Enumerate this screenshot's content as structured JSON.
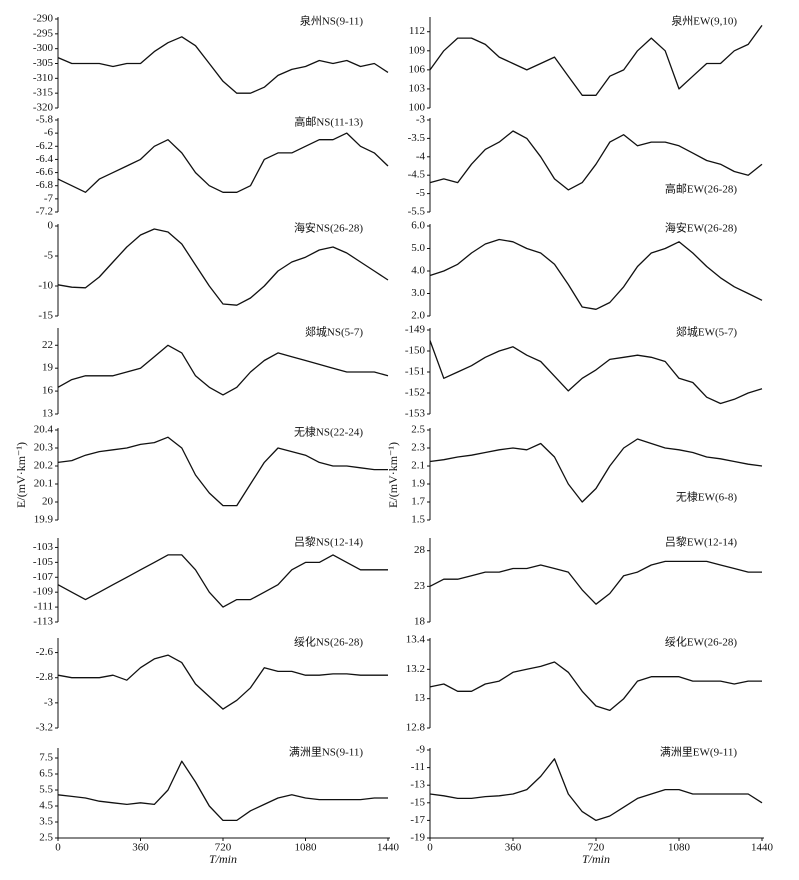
{
  "chart_data": [
    {
      "type": "line",
      "title": "泉州NS(9-11)",
      "x": [
        0,
        60,
        120,
        180,
        240,
        300,
        360,
        420,
        480,
        540,
        600,
        660,
        720,
        780,
        840,
        900,
        960,
        1020,
        1080,
        1140,
        1200,
        1260,
        1320,
        1380,
        1440
      ],
      "values": [
        -303,
        -305,
        -305,
        -305,
        -306,
        -305,
        -305,
        -301,
        -298,
        -296,
        -299,
        -305,
        -311,
        -315,
        -315,
        -313,
        -309,
        -307,
        -306,
        -304,
        -305,
        -304,
        -306,
        -305,
        -308
      ],
      "color": "#111111",
      "xlim": [
        0,
        1440
      ],
      "ylim": [
        -320,
        -290
      ],
      "yticks": [
        -290,
        -295,
        -300,
        -305,
        -310,
        -315,
        -320
      ]
    },
    {
      "type": "line",
      "title": "泉州EW(9,10)",
      "x": [
        0,
        60,
        120,
        180,
        240,
        300,
        360,
        420,
        480,
        540,
        600,
        660,
        720,
        780,
        840,
        900,
        960,
        1020,
        1080,
        1140,
        1200,
        1260,
        1320,
        1380,
        1440
      ],
      "values": [
        106,
        109,
        111,
        111,
        110,
        108,
        107,
        106,
        107,
        108,
        105,
        102,
        102,
        105,
        106,
        109,
        111,
        109,
        103,
        105,
        107,
        107,
        109,
        110,
        113
      ],
      "color": "#111111",
      "xlim": [
        0,
        1440
      ],
      "ylim": [
        100,
        114
      ],
      "yticks": [
        100,
        103,
        106,
        109,
        112
      ]
    },
    {
      "type": "line",
      "title": "高邮NS(11-13)",
      "x": [
        0,
        60,
        120,
        180,
        240,
        300,
        360,
        420,
        480,
        540,
        600,
        660,
        720,
        780,
        840,
        900,
        960,
        1020,
        1080,
        1140,
        1200,
        1260,
        1320,
        1380,
        1440
      ],
      "values": [
        -6.7,
        -6.8,
        -6.9,
        -6.7,
        -6.6,
        -6.5,
        -6.4,
        -6.2,
        -6.1,
        -6.3,
        -6.6,
        -6.8,
        -6.9,
        -6.9,
        -6.8,
        -6.4,
        -6.3,
        -6.3,
        -6.2,
        -6.1,
        -6.1,
        -6.0,
        -6.2,
        -6.3,
        -6.5
      ],
      "color": "#111111",
      "xlim": [
        0,
        1440
      ],
      "ylim": [
        -7.2,
        -5.8
      ],
      "yticks": [
        -5.8,
        -6,
        -6.2,
        -6.4,
        -6.6,
        -6.8,
        -7,
        -7.2
      ]
    },
    {
      "type": "line",
      "title": "高邮EW(26-28)",
      "title_corner": "bottom-right",
      "x": [
        0,
        60,
        120,
        180,
        240,
        300,
        360,
        420,
        480,
        540,
        600,
        660,
        720,
        780,
        840,
        900,
        960,
        1020,
        1080,
        1140,
        1200,
        1260,
        1320,
        1380,
        1440
      ],
      "values": [
        -4.7,
        -4.6,
        -4.7,
        -4.2,
        -3.8,
        -3.6,
        -3.3,
        -3.5,
        -4.0,
        -4.6,
        -4.9,
        -4.7,
        -4.2,
        -3.6,
        -3.4,
        -3.7,
        -3.6,
        -3.6,
        -3.7,
        -3.9,
        -4.1,
        -4.2,
        -4.4,
        -4.5,
        -4.2
      ],
      "color": "#111111",
      "xlim": [
        0,
        1440
      ],
      "ylim": [
        -5.5,
        -3
      ],
      "yticks": [
        -3,
        -3.5,
        -4,
        -4.5,
        -5,
        -5.5
      ]
    },
    {
      "type": "line",
      "title": "海安NS(26-28)",
      "x": [
        0,
        60,
        120,
        180,
        240,
        300,
        360,
        420,
        480,
        540,
        600,
        660,
        720,
        780,
        840,
        900,
        960,
        1020,
        1080,
        1140,
        1200,
        1260,
        1320,
        1380,
        1440
      ],
      "values": [
        -9.8,
        -10.2,
        -10.3,
        -8.5,
        -6,
        -3.5,
        -1.5,
        -0.5,
        -1,
        -3,
        -6.5,
        -10,
        -13,
        -13.2,
        -12,
        -10,
        -7.5,
        -6,
        -5.2,
        -4,
        -3.5,
        -4.5,
        -6,
        -7.5,
        -9
      ],
      "color": "#111111",
      "xlim": [
        0,
        1440
      ],
      "ylim": [
        -15,
        0
      ],
      "yticks": [
        0,
        -5,
        -10,
        -15
      ]
    },
    {
      "type": "line",
      "title": "海安EW(26-28)",
      "x": [
        0,
        60,
        120,
        180,
        240,
        300,
        360,
        420,
        480,
        540,
        600,
        660,
        720,
        780,
        840,
        900,
        960,
        1020,
        1080,
        1140,
        1200,
        1260,
        1320,
        1380,
        1440
      ],
      "values": [
        3.8,
        4.0,
        4.3,
        4.8,
        5.2,
        5.4,
        5.3,
        5.0,
        4.8,
        4.3,
        3.4,
        2.4,
        2.3,
        2.6,
        3.3,
        4.2,
        4.8,
        5.0,
        5.3,
        4.8,
        4.2,
        3.7,
        3.3,
        3.0,
        2.7
      ],
      "color": "#111111",
      "xlim": [
        0,
        1440
      ],
      "ylim": [
        2,
        6
      ],
      "yticks": [
        {
          "value": 6,
          "label": "6.0"
        },
        {
          "value": 5,
          "label": "5.0"
        },
        {
          "value": 4,
          "label": "4.0"
        },
        {
          "value": 3,
          "label": "3.0"
        },
        {
          "value": 2,
          "label": "2.0"
        }
      ]
    },
    {
      "type": "line",
      "title": "郯城NS(5-7)",
      "x": [
        0,
        60,
        120,
        180,
        240,
        300,
        360,
        420,
        480,
        540,
        600,
        660,
        720,
        780,
        840,
        900,
        960,
        1020,
        1080,
        1140,
        1200,
        1260,
        1320,
        1380,
        1440
      ],
      "values": [
        16.5,
        17.5,
        18,
        18,
        18,
        18.5,
        19,
        20.5,
        22,
        21,
        18,
        16.5,
        15.5,
        16.5,
        18.5,
        20,
        21,
        20.5,
        20,
        19.5,
        19,
        18.5,
        18.5,
        18.5,
        18
      ],
      "color": "#111111",
      "xlim": [
        0,
        1440
      ],
      "ylim": [
        13,
        24
      ],
      "yticks": [
        22,
        19,
        16,
        13
      ]
    },
    {
      "type": "line",
      "title": "郯城EW(5-7)",
      "x": [
        0,
        60,
        120,
        180,
        240,
        300,
        360,
        420,
        480,
        540,
        600,
        660,
        720,
        780,
        840,
        900,
        960,
        1020,
        1080,
        1140,
        1200,
        1260,
        1320,
        1380,
        1440
      ],
      "values": [
        -149.5,
        -151.3,
        -151,
        -150.7,
        -150.3,
        -150,
        -149.8,
        -150.2,
        -150.5,
        -151.2,
        -151.9,
        -151.3,
        -150.9,
        -150.4,
        -150.3,
        -150.2,
        -150.3,
        -150.5,
        -151.3,
        -151.5,
        -152.2,
        -152.5,
        -152.3,
        -152,
        -151.8
      ],
      "color": "#111111",
      "xlim": [
        0,
        1440
      ],
      "ylim": [
        -153,
        -149
      ],
      "yticks": [
        -149,
        -150,
        -151,
        -152,
        -153
      ]
    },
    {
      "type": "line",
      "title": "无棣NS(22-24)",
      "x": [
        0,
        60,
        120,
        180,
        240,
        300,
        360,
        420,
        480,
        540,
        600,
        660,
        720,
        780,
        840,
        900,
        960,
        1020,
        1080,
        1140,
        1200,
        1260,
        1320,
        1380,
        1440
      ],
      "values": [
        20.22,
        20.23,
        20.26,
        20.28,
        20.29,
        20.3,
        20.32,
        20.33,
        20.36,
        20.3,
        20.15,
        20.05,
        19.98,
        19.98,
        20.1,
        20.22,
        20.3,
        20.28,
        20.26,
        20.22,
        20.2,
        20.2,
        20.19,
        20.18,
        20.18
      ],
      "color": "#111111",
      "xlim": [
        0,
        1440
      ],
      "ylim": [
        19.9,
        20.4
      ],
      "yticks": [
        20.4,
        20.3,
        20.2,
        20.1,
        20,
        19.9
      ],
      "ylabel": "E/(mV·km⁻¹)"
    },
    {
      "type": "line",
      "title": "无棣EW(6-8)",
      "title_corner": "bottom-right",
      "x": [
        0,
        60,
        120,
        180,
        240,
        300,
        360,
        420,
        480,
        540,
        600,
        660,
        720,
        780,
        840,
        900,
        960,
        1020,
        1080,
        1140,
        1200,
        1260,
        1320,
        1380,
        1440
      ],
      "values": [
        2.15,
        2.17,
        2.2,
        2.22,
        2.25,
        2.28,
        2.3,
        2.28,
        2.35,
        2.2,
        1.9,
        1.7,
        1.85,
        2.1,
        2.3,
        2.4,
        2.35,
        2.3,
        2.28,
        2.25,
        2.2,
        2.18,
        2.15,
        2.12,
        2.1
      ],
      "color": "#111111",
      "xlim": [
        0,
        1440
      ],
      "ylim": [
        1.5,
        2.5
      ],
      "yticks": [
        2.5,
        2.3,
        2.1,
        1.9,
        1.7,
        1.5
      ],
      "ylabel": "E/(mV·km⁻¹)"
    },
    {
      "type": "line",
      "title": "吕黎NS(12-14)",
      "x": [
        0,
        60,
        120,
        180,
        240,
        300,
        360,
        420,
        480,
        540,
        600,
        660,
        720,
        780,
        840,
        900,
        960,
        1020,
        1080,
        1140,
        1200,
        1260,
        1320,
        1380,
        1440
      ],
      "values": [
        -108,
        -109,
        -110,
        -109,
        -108,
        -107,
        -106,
        -105,
        -104,
        -104,
        -106,
        -109,
        -111,
        -110,
        -110,
        -109,
        -108,
        -106,
        -105,
        -105,
        -104,
        -105,
        -106,
        -106,
        -106
      ],
      "color": "#111111",
      "xlim": [
        0,
        1440
      ],
      "ylim": [
        -113,
        -102
      ],
      "yticks": [
        -103,
        -105,
        -107,
        -109,
        -111,
        -113
      ]
    },
    {
      "type": "line",
      "title": "吕黎EW(12-14)",
      "x": [
        0,
        60,
        120,
        180,
        240,
        300,
        360,
        420,
        480,
        540,
        600,
        660,
        720,
        780,
        840,
        900,
        960,
        1020,
        1080,
        1140,
        1200,
        1260,
        1320,
        1380,
        1440
      ],
      "values": [
        23,
        24,
        24,
        24.5,
        25,
        25,
        25.5,
        25.5,
        26,
        25.5,
        25,
        22.5,
        20.5,
        22,
        24.5,
        25,
        26,
        26.5,
        26.5,
        26.5,
        26.5,
        26,
        25.5,
        25,
        25
      ],
      "color": "#111111",
      "xlim": [
        0,
        1440
      ],
      "ylim": [
        18,
        29.5
      ],
      "yticks": [
        28,
        23,
        18
      ]
    },
    {
      "type": "line",
      "title": "绥化NS(26-28)",
      "x": [
        0,
        60,
        120,
        180,
        240,
        300,
        360,
        420,
        480,
        540,
        600,
        660,
        720,
        780,
        840,
        900,
        960,
        1020,
        1080,
        1140,
        1200,
        1260,
        1320,
        1380,
        1440
      ],
      "values": [
        -2.78,
        -2.8,
        -2.8,
        -2.8,
        -2.78,
        -2.82,
        -2.72,
        -2.65,
        -2.62,
        -2.68,
        -2.85,
        -2.95,
        -3.05,
        -2.98,
        -2.88,
        -2.72,
        -2.75,
        -2.75,
        -2.78,
        -2.78,
        -2.77,
        -2.77,
        -2.78,
        -2.78,
        -2.78
      ],
      "color": "#111111",
      "xlim": [
        0,
        1440
      ],
      "ylim": [
        -3.2,
        -2.5
      ],
      "yticks": [
        -2.6,
        -2.8,
        -3,
        -3.2
      ]
    },
    {
      "type": "line",
      "title": "绥化EW(26-28)",
      "x": [
        0,
        60,
        120,
        180,
        240,
        300,
        360,
        420,
        480,
        540,
        600,
        660,
        720,
        780,
        840,
        900,
        960,
        1020,
        1080,
        1140,
        1200,
        1260,
        1320,
        1380,
        1440
      ],
      "values": [
        13.08,
        13.1,
        13.05,
        13.05,
        13.1,
        13.12,
        13.18,
        13.2,
        13.22,
        13.25,
        13.18,
        13.05,
        12.95,
        12.92,
        13.0,
        13.12,
        13.15,
        13.15,
        13.15,
        13.12,
        13.12,
        13.12,
        13.1,
        13.12,
        13.12
      ],
      "color": "#111111",
      "xlim": [
        0,
        1440
      ],
      "ylim": [
        12.8,
        13.4
      ],
      "yticks": [
        13.4,
        13.2,
        13,
        12.8
      ]
    },
    {
      "type": "line",
      "title": "满洲里NS(9-11)",
      "x": [
        0,
        60,
        120,
        180,
        240,
        300,
        360,
        420,
        480,
        540,
        600,
        660,
        720,
        780,
        840,
        900,
        960,
        1020,
        1080,
        1140,
        1200,
        1260,
        1320,
        1380,
        1440
      ],
      "values": [
        5.2,
        5.1,
        5.0,
        4.8,
        4.7,
        4.6,
        4.7,
        4.6,
        5.5,
        7.3,
        6,
        4.5,
        3.6,
        3.6,
        4.2,
        4.6,
        5,
        5.2,
        5,
        4.9,
        4.9,
        4.9,
        4.9,
        5,
        5
      ],
      "color": "#111111",
      "xlim": [
        0,
        1440
      ],
      "ylim": [
        2.5,
        8
      ],
      "yticks": [
        7.5,
        6.5,
        5.5,
        4.5,
        3.5,
        2.5
      ],
      "xticks": [
        0,
        360,
        720,
        1080,
        1440
      ],
      "xlabel": "T/min"
    },
    {
      "type": "line",
      "title": "满洲里EW(9-11)",
      "x": [
        0,
        60,
        120,
        180,
        240,
        300,
        360,
        420,
        480,
        540,
        600,
        660,
        720,
        780,
        840,
        900,
        960,
        1020,
        1080,
        1140,
        1200,
        1260,
        1320,
        1380,
        1440
      ],
      "values": [
        -14,
        -14.2,
        -14.5,
        -14.5,
        -14.3,
        -14.2,
        -14,
        -13.5,
        -12,
        -10,
        -14,
        -16,
        -17,
        -16.5,
        -15.5,
        -14.5,
        -14,
        -13.5,
        -13.5,
        -14,
        -14,
        -14,
        -14,
        -14,
        -15
      ],
      "color": "#111111",
      "xlim": [
        0,
        1440
      ],
      "ylim": [
        -19,
        -9
      ],
      "yticks": [
        -9,
        -11,
        -13,
        -15,
        -17,
        -19
      ],
      "xticks": [
        0,
        360,
        720,
        1080,
        1440
      ],
      "xlabel": "T/min"
    }
  ]
}
